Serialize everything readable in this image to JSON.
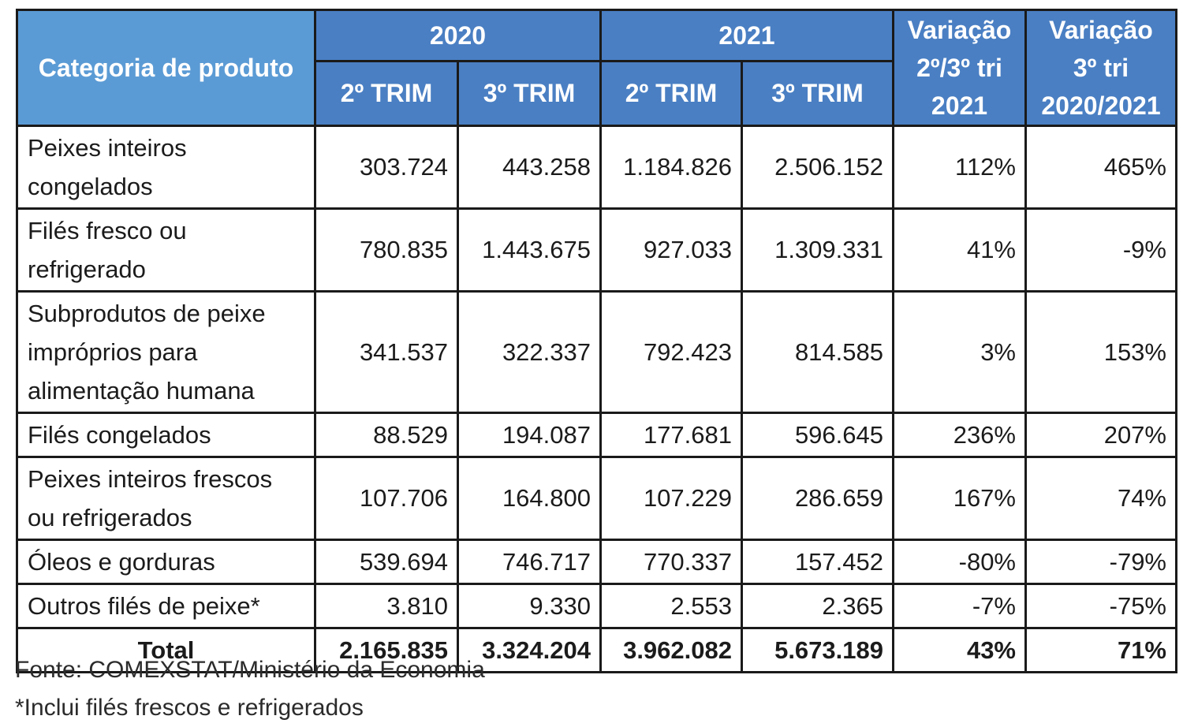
{
  "table": {
    "header": {
      "category": "Categoria de produto",
      "year_2020": "2020",
      "year_2021": "2021",
      "trim_2": "2º TRIM",
      "trim_3": "3º TRIM",
      "var_a": [
        "Variação",
        "2º/3º tri",
        "2021"
      ],
      "var_b": [
        "Variação",
        "3º tri",
        "2020/2021"
      ]
    },
    "rows": [
      {
        "label": [
          "Peixes inteiros",
          "congelados"
        ],
        "values": [
          "303.724",
          "443.258",
          "1.184.826",
          "2.506.152",
          "112%",
          "465%"
        ]
      },
      {
        "label": [
          "Filés fresco ou",
          "refrigerado"
        ],
        "values": [
          "780.835",
          "1.443.675",
          "927.033",
          "1.309.331",
          "41%",
          "-9%"
        ]
      },
      {
        "label": [
          "Subprodutos de peixe",
          "impróprios para",
          "alimentação humana"
        ],
        "values": [
          "341.537",
          "322.337",
          "792.423",
          "814.585",
          "3%",
          "153%"
        ]
      },
      {
        "label": [
          "Filés congelados"
        ],
        "values": [
          "88.529",
          "194.087",
          "177.681",
          "596.645",
          "236%",
          "207%"
        ]
      },
      {
        "label": [
          "Peixes inteiros frescos",
          "ou refrigerados"
        ],
        "values": [
          "107.706",
          "164.800",
          "107.229",
          "286.659",
          "167%",
          "74%"
        ]
      },
      {
        "label": [
          "Óleos e gorduras"
        ],
        "values": [
          "539.694",
          "746.717",
          "770.337",
          "157.452",
          "-80%",
          "-79%"
        ]
      },
      {
        "label": [
          "Outros filés de peixe*"
        ],
        "values": [
          "3.810",
          "9.330",
          "2.553",
          "2.365",
          "-7%",
          "-75%"
        ]
      }
    ],
    "total": {
      "label": "Total",
      "values": [
        "2.165.835",
        "3.324.204",
        "3.962.082",
        "5.673.189",
        "43%",
        "71%"
      ]
    }
  },
  "notes": {
    "source": "Fonte: COMEXSTAT/Ministério da Economia",
    "footnote": "*Inclui filés frescos e refrigerados"
  },
  "colors": {
    "header_light": "#5b9bd5",
    "header_dark": "#4a7fc3"
  }
}
